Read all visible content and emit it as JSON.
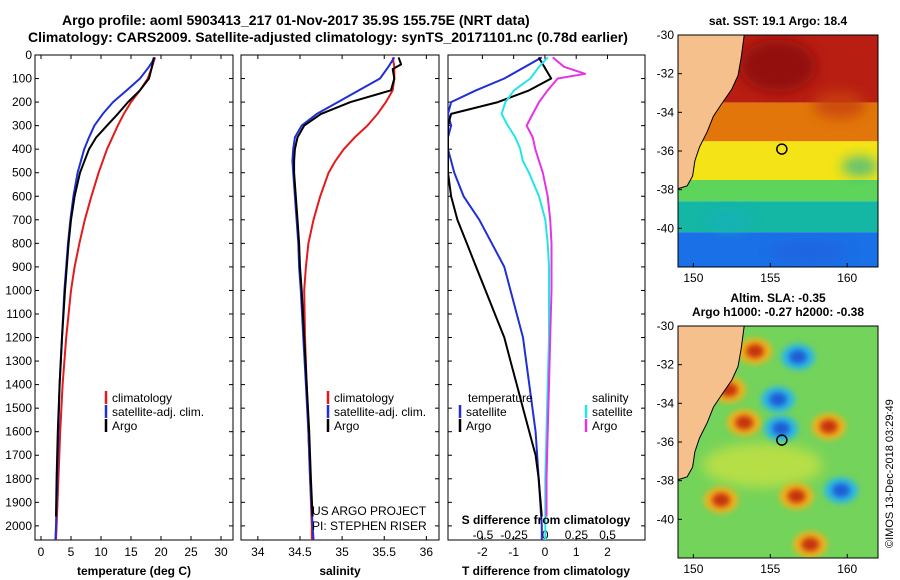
{
  "header": {
    "title_line1": "Argo profile: aoml 5903413_217 01-Nov-2017 35.9S 155.75E (NRT data)",
    "title_line2": "Climatology: CARS2009. Satellite-adjusted climatology: synTS_20171101.nc (0.78d earlier)"
  },
  "colors": {
    "climatology": "#e31a1c",
    "satellite": "#1f2fd6",
    "argo": "#000000",
    "salinity_sat": "#22e6e6",
    "salinity_argo": "#e633e6",
    "land": "#f6c08c"
  },
  "chart_data": [
    {
      "type": "line",
      "name": "temperature-profile",
      "xlabel": "temperature (deg C)",
      "ylabel": "",
      "xlim": [
        -1,
        32
      ],
      "ylim": [
        2060,
        0
      ],
      "xticks": [
        0,
        5,
        10,
        15,
        20,
        25,
        30
      ],
      "xtick_labels": [
        "0",
        "5",
        "10",
        "15",
        "20",
        "25",
        "30"
      ],
      "yticks": [
        0,
        100,
        200,
        300,
        400,
        500,
        600,
        700,
        800,
        900,
        1000,
        1100,
        1200,
        1300,
        1400,
        1500,
        1600,
        1700,
        1800,
        1900,
        2000
      ],
      "ytick_labels": [
        "0",
        "100",
        "200",
        "300",
        "400",
        "500",
        "600",
        "700",
        "800",
        "900",
        "1000",
        "1100",
        "1200",
        "1300",
        "1400",
        "1500",
        "1600",
        "1700",
        "1800",
        "1900",
        "2000"
      ],
      "legend": [
        "climatology",
        "satellite-adj. clim.",
        "Argo"
      ],
      "series": [
        {
          "name": "climatology",
          "color": "#e31a1c",
          "depth": [
            10,
            50,
            100,
            150,
            200,
            250,
            300,
            400,
            500,
            600,
            700,
            800,
            900,
            1000,
            1200,
            1400,
            1600,
            1800,
            2000,
            2060
          ],
          "values": [
            19.0,
            18.5,
            17.8,
            16.5,
            15.0,
            13.8,
            12.8,
            11.0,
            9.6,
            8.4,
            7.3,
            6.4,
            5.6,
            5.0,
            4.2,
            3.6,
            3.2,
            2.9,
            2.6,
            2.5
          ]
        },
        {
          "name": "satellite-adj. clim.",
          "color": "#1f2fd6",
          "depth": [
            10,
            50,
            100,
            150,
            200,
            250,
            300,
            350,
            400,
            500,
            600,
            700,
            800,
            900,
            1000,
            1200,
            1400,
            1600,
            1800,
            2000,
            2060
          ],
          "values": [
            19.0,
            18.0,
            16.5,
            14.3,
            12.0,
            10.3,
            8.9,
            8.0,
            7.2,
            6.1,
            5.4,
            4.9,
            4.5,
            4.2,
            3.9,
            3.5,
            3.1,
            2.9,
            2.7,
            2.5,
            2.4
          ]
        },
        {
          "name": "Argo",
          "color": "#000000",
          "depth": [
            10,
            50,
            100,
            150,
            200,
            250,
            300,
            350,
            400,
            500,
            600,
            700,
            800,
            900,
            1000,
            1200,
            1400,
            1600,
            1800,
            1960
          ],
          "values": [
            18.8,
            18.5,
            18.0,
            16.5,
            14.5,
            12.8,
            11.0,
            9.2,
            8.0,
            6.5,
            5.6,
            5.0,
            4.6,
            4.3,
            4.0,
            3.5,
            3.1,
            2.8,
            2.6,
            2.5
          ]
        }
      ]
    },
    {
      "type": "line",
      "name": "salinity-profile",
      "xlabel": "salinity",
      "ylabel": "",
      "xlim": [
        33.8,
        36.15
      ],
      "ylim": [
        2060,
        0
      ],
      "xticks": [
        34,
        34.5,
        35,
        35.5,
        36
      ],
      "xtick_labels": [
        "34",
        "34.5",
        "35",
        "35.5",
        "36"
      ],
      "legend": [
        "climatology",
        "satellite-adj. clim.",
        "Argo"
      ],
      "credit": [
        "US ARGO PROJECT",
        "PI: STEPHEN RISER"
      ],
      "series": [
        {
          "name": "climatology",
          "color": "#e31a1c",
          "depth": [
            10,
            50,
            100,
            150,
            200,
            250,
            300,
            350,
            400,
            450,
            500,
            600,
            700,
            800,
            900,
            1000,
            1200,
            1400,
            1600,
            1800,
            2000,
            2060
          ],
          "values": [
            35.6,
            35.62,
            35.62,
            35.6,
            35.52,
            35.42,
            35.3,
            35.15,
            35.02,
            34.92,
            34.84,
            34.74,
            34.66,
            34.6,
            34.57,
            34.55,
            34.56,
            34.58,
            34.6,
            34.62,
            34.64,
            34.64
          ]
        },
        {
          "name": "satellite-adj. clim.",
          "color": "#1f2fd6",
          "depth": [
            10,
            50,
            100,
            150,
            200,
            250,
            300,
            350,
            400,
            450,
            500,
            600,
            700,
            800,
            900,
            1000,
            1200,
            1400,
            1600,
            1800,
            2000,
            2060
          ],
          "values": [
            35.62,
            35.55,
            35.45,
            35.2,
            34.95,
            34.7,
            34.52,
            34.44,
            34.42,
            34.41,
            34.42,
            34.44,
            34.46,
            34.48,
            34.49,
            34.51,
            34.54,
            34.57,
            34.6,
            34.62,
            34.65,
            34.66
          ]
        },
        {
          "name": "Argo",
          "color": "#000000",
          "depth": [
            10,
            40,
            60,
            100,
            150,
            200,
            250,
            300,
            350,
            400,
            450,
            500,
            600,
            700,
            800,
            900,
            1000,
            1200,
            1400,
            1600,
            1800,
            1960
          ],
          "values": [
            35.67,
            35.7,
            35.6,
            35.62,
            35.58,
            35.1,
            34.75,
            34.55,
            34.47,
            34.44,
            34.43,
            34.43,
            34.45,
            34.47,
            34.49,
            34.5,
            34.52,
            34.55,
            34.58,
            34.61,
            34.63,
            34.65
          ]
        }
      ]
    },
    {
      "type": "line",
      "name": "difference-profile",
      "xlabel": "T difference from climatology",
      "xlabel_top": "S difference from climatology",
      "xlim": [
        -3.1,
        3.2
      ],
      "xlim_top": [
        -0.78,
        0.8
      ],
      "ylim": [
        2060,
        0
      ],
      "xticks": [
        -2,
        -1,
        0,
        1,
        2
      ],
      "xtick_labels": [
        "-2",
        "-1",
        "0",
        "1",
        "2"
      ],
      "xticks_top": [
        -0.5,
        -0.25,
        0,
        0.25,
        0.5
      ],
      "xtick_labels_top": [
        "-0.5",
        "-0.25",
        "0",
        "0.25",
        "0.5"
      ],
      "legend_temperature": {
        "title": "temperature",
        "items": [
          "satellite",
          "Argo"
        ]
      },
      "legend_salinity": {
        "title": "salinity",
        "items": [
          "satellite",
          "Argo"
        ]
      },
      "series": [
        {
          "name": "T satellite",
          "color": "#1f2fd6",
          "axis": "T",
          "depth": [
            10,
            100,
            150,
            200,
            250,
            300,
            350,
            400,
            500,
            600,
            700,
            800,
            900,
            1000,
            1200,
            1400,
            1600,
            1800,
            2000,
            2060
          ],
          "values": [
            -0.1,
            -1.3,
            -2.2,
            -3.0,
            -3.1,
            -3.0,
            -3.1,
            -3.1,
            -2.9,
            -2.6,
            -2.1,
            -1.7,
            -1.3,
            -1.1,
            -0.7,
            -0.5,
            -0.3,
            -0.2,
            -0.1,
            -0.1
          ]
        },
        {
          "name": "T Argo",
          "color": "#000000",
          "axis": "T",
          "depth": [
            10,
            100,
            150,
            200,
            250,
            300,
            400,
            500,
            600,
            700,
            800,
            900,
            1000,
            1100,
            1200,
            1300,
            1400,
            1500,
            1600,
            1700,
            1800,
            1960
          ],
          "values": [
            -0.2,
            0.2,
            -0.5,
            -1.5,
            -3.0,
            -3.1,
            -3.1,
            -3.1,
            -3.0,
            -2.8,
            -2.5,
            -2.2,
            -1.9,
            -1.6,
            -1.3,
            -1.1,
            -0.9,
            -0.7,
            -0.5,
            -0.3,
            -0.2,
            -0.1
          ]
        },
        {
          "name": "S satellite",
          "color": "#22e6e6",
          "axis": "S",
          "depth": [
            10,
            50,
            100,
            150,
            200,
            250,
            300,
            350,
            400,
            450,
            500,
            600,
            700,
            800,
            900,
            1000,
            1200,
            1400,
            1600,
            1800,
            2000,
            2060
          ],
          "values": [
            0.02,
            -0.05,
            -0.12,
            -0.25,
            -0.32,
            -0.35,
            -0.3,
            -0.24,
            -0.2,
            -0.18,
            -0.13,
            -0.05,
            0.0,
            0.02,
            0.03,
            0.03,
            0.03,
            0.02,
            0.01,
            0.0,
            0.0,
            0.0
          ]
        },
        {
          "name": "S Argo",
          "color": "#e633e6",
          "axis": "S",
          "depth": [
            10,
            50,
            80,
            100,
            150,
            200,
            250,
            300,
            350,
            400,
            450,
            500,
            600,
            700,
            800,
            900,
            1000,
            1200,
            1400,
            1600,
            1800,
            1960
          ],
          "values": [
            0.06,
            0.15,
            0.32,
            0.1,
            0.02,
            -0.05,
            -0.1,
            -0.15,
            -0.1,
            -0.08,
            -0.05,
            -0.02,
            0.02,
            0.04,
            0.05,
            0.05,
            0.05,
            0.04,
            0.03,
            0.02,
            0.01,
            0.01
          ]
        }
      ]
    },
    {
      "type": "heatmap",
      "name": "sst-map",
      "title": "sat. SST: 19.1 Argo: 18.4",
      "xlim": [
        149,
        162
      ],
      "ylim": [
        -42,
        -30
      ],
      "xticks": [
        150,
        155,
        160
      ],
      "xtick_labels": [
        "150",
        "155",
        "160"
      ],
      "yticks": [
        -30,
        -32,
        -34,
        -36,
        -38,
        -40
      ],
      "ytick_labels": [
        "-30",
        "-32",
        "-34",
        "-36",
        "-38",
        "-40"
      ],
      "float_position": [
        155.75,
        -35.9
      ],
      "bands": [
        {
          "lat_from": -30,
          "lat_to": -33.5,
          "color": "#b81e12"
        },
        {
          "lat_from": -33.5,
          "lat_to": -35.5,
          "color": "#e2760a"
        },
        {
          "lat_from": -35.5,
          "lat_to": -37.5,
          "color": "#f4e316"
        },
        {
          "lat_from": -37.5,
          "lat_to": -38.6,
          "color": "#5fd45a"
        },
        {
          "lat_from": -38.6,
          "lat_to": -40.2,
          "color": "#14b6a4"
        },
        {
          "lat_from": -40.2,
          "lat_to": -42,
          "color": "#1a70e6"
        }
      ]
    },
    {
      "type": "heatmap",
      "name": "sla-map",
      "title_line1": "Altim. SLA: -0.35",
      "title_line2": "Argo h1000: -0.27 h2000: -0.38",
      "xlim": [
        149,
        162
      ],
      "ylim": [
        -42,
        -30
      ],
      "xticks": [
        150,
        155,
        160
      ],
      "xtick_labels": [
        "150",
        "155",
        "160"
      ],
      "yticks": [
        -30,
        -32,
        -34,
        -36,
        -38,
        -40
      ],
      "ytick_labels": [
        "-30",
        "-32",
        "-34",
        "-36",
        "-38",
        "-40"
      ],
      "float_position": [
        155.75,
        -35.9
      ],
      "credit": "©IMOS 13-Dec-2018 03:29:49",
      "eddies": [
        {
          "lon": 152.3,
          "lat": -33.3,
          "sign": "high"
        },
        {
          "lon": 154.0,
          "lat": -31.3,
          "sign": "high"
        },
        {
          "lon": 155.5,
          "lat": -33.8,
          "sign": "low"
        },
        {
          "lon": 156.8,
          "lat": -31.6,
          "sign": "low"
        },
        {
          "lon": 153.3,
          "lat": -35.0,
          "sign": "high"
        },
        {
          "lon": 155.7,
          "lat": -35.3,
          "sign": "low"
        },
        {
          "lon": 158.8,
          "lat": -35.2,
          "sign": "high"
        },
        {
          "lon": 151.8,
          "lat": -39.0,
          "sign": "high"
        },
        {
          "lon": 156.7,
          "lat": -38.8,
          "sign": "high"
        },
        {
          "lon": 159.6,
          "lat": -38.5,
          "sign": "low"
        },
        {
          "lon": 157.6,
          "lat": -41.3,
          "sign": "high"
        }
      ]
    }
  ]
}
